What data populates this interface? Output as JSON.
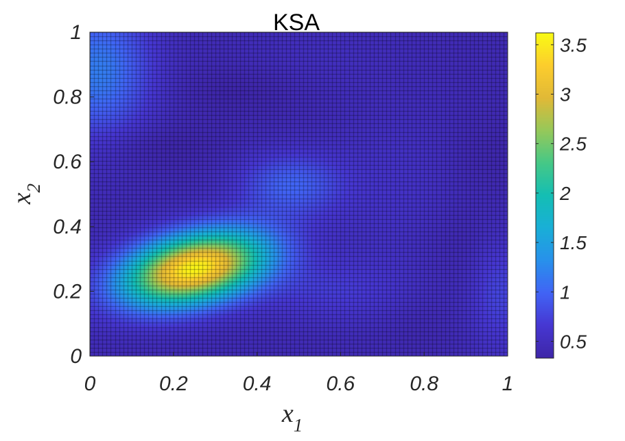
{
  "chart_data": {
    "type": "heatmap",
    "title": "KSA",
    "xlabel": {
      "base": "x",
      "sub": "1"
    },
    "ylabel": {
      "base": "x",
      "sub": "2"
    },
    "xlim": [
      0,
      1
    ],
    "ylim": [
      0,
      1
    ],
    "x_ticks": [
      0,
      0.2,
      0.4,
      0.6,
      0.8,
      1
    ],
    "y_ticks": [
      0,
      0.2,
      0.4,
      0.6,
      0.8,
      1
    ],
    "x_tick_labels": [
      "0",
      "0.2",
      "0.4",
      "0.6",
      "0.8",
      "1"
    ],
    "y_tick_labels": [
      "0",
      "0.2",
      "0.4",
      "0.6",
      "0.8",
      "1"
    ],
    "colorbar": {
      "range": [
        0.33,
        3.62
      ],
      "ticks": [
        0.5,
        1,
        1.5,
        2,
        2.5,
        3,
        3.5
      ],
      "tick_labels": [
        "0.5",
        "1",
        "1.5",
        "2",
        "2.5",
        "3",
        "3.5"
      ],
      "colormap": "parula"
    },
    "grid": {
      "x_cells": 100,
      "y_cells": 78,
      "edge_color": "#000000"
    },
    "field": {
      "base": 0.42,
      "components": [
        {
          "cx": 0.25,
          "cy": 0.27,
          "sx": 0.12,
          "sy": 0.08,
          "rho": 0.35,
          "amp": 3.15
        },
        {
          "cx": 0.02,
          "cy": 0.88,
          "sx": 0.09,
          "sy": 0.15,
          "rho": 0.0,
          "amp": 0.75
        },
        {
          "cx": 0.48,
          "cy": 0.53,
          "sx": 0.09,
          "sy": 0.07,
          "rho": 0.0,
          "amp": 0.55
        },
        {
          "cx": 0.98,
          "cy": 0.2,
          "sx": 0.05,
          "sy": 0.13,
          "rho": 0.0,
          "amp": 0.35
        },
        {
          "cx": 0.58,
          "cy": 0.2,
          "sx": 0.13,
          "sy": 0.07,
          "rho": 0.0,
          "amp": 0.25
        },
        {
          "cx": 0.75,
          "cy": 0.5,
          "sx": 0.12,
          "sy": 0.2,
          "rho": 0.0,
          "amp": 0.15
        },
        {
          "cx": 0.55,
          "cy": 0.93,
          "sx": 0.15,
          "sy": 0.08,
          "rho": 0.0,
          "amp": 0.08
        }
      ],
      "dips": [
        {
          "cx": 0.15,
          "cy": 0.65,
          "sx": 0.12,
          "sy": 0.05,
          "amp": 0.12
        },
        {
          "cx": 0.35,
          "cy": 0.82,
          "sx": 0.1,
          "sy": 0.05,
          "amp": 0.1
        },
        {
          "cx": 0.9,
          "cy": 0.35,
          "sx": 0.08,
          "sy": 0.1,
          "amp": 0.1
        },
        {
          "cx": 0.95,
          "cy": 0.62,
          "sx": 0.08,
          "sy": 0.08,
          "amp": 0.08
        },
        {
          "cx": 0.78,
          "cy": 0.1,
          "sx": 0.06,
          "sy": 0.06,
          "amp": 0.05
        }
      ]
    }
  }
}
